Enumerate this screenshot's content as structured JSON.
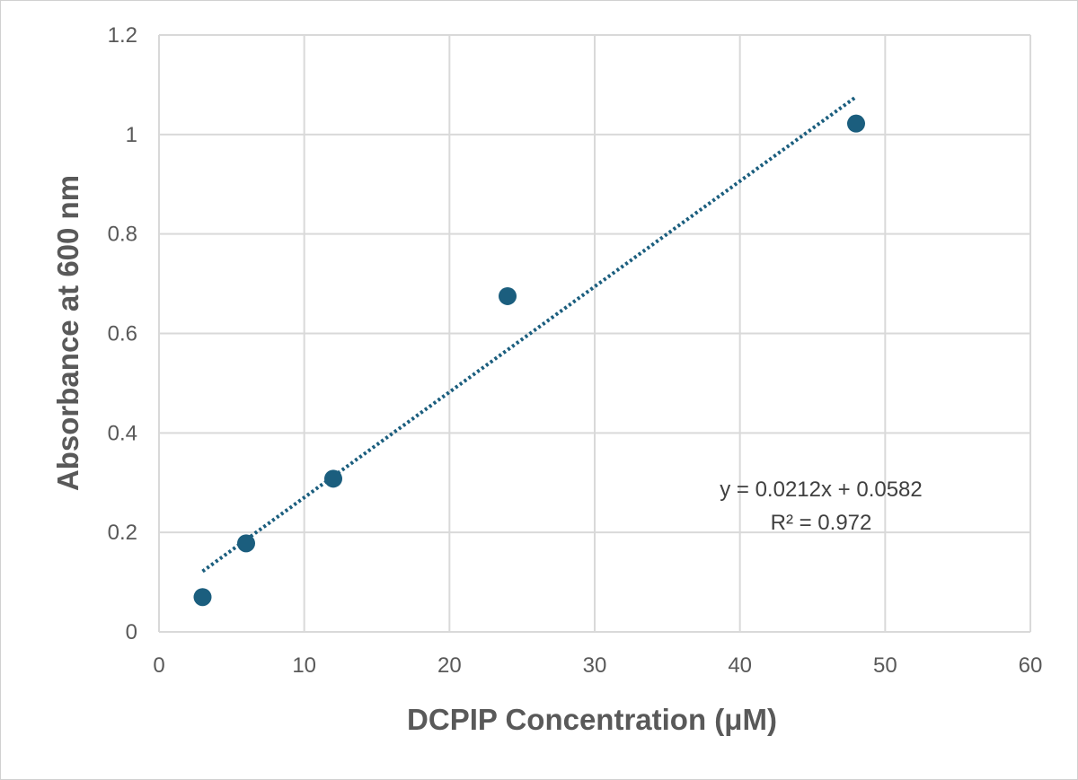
{
  "chart_data": {
    "type": "scatter",
    "title": "",
    "xlabel": "DCPIP Concentration (μM)",
    "ylabel": "Absorbance at 600 nm",
    "xlim": [
      0,
      60
    ],
    "ylim": [
      0,
      1.2
    ],
    "x_ticks": [
      0,
      10,
      20,
      30,
      40,
      50,
      60
    ],
    "y_ticks": [
      0,
      0.2,
      0.4,
      0.6,
      0.8,
      1,
      1.2
    ],
    "x_tick_labels": [
      "0",
      "10",
      "20",
      "30",
      "40",
      "50",
      "60"
    ],
    "y_tick_labels": [
      "0",
      "0.2",
      "0.4",
      "0.6",
      "0.8",
      "1",
      "1.2"
    ],
    "grid": true,
    "legend": "none",
    "series": [
      {
        "x": [
          3,
          6,
          12,
          24,
          48
        ],
        "y": [
          0.07,
          0.178,
          0.308,
          0.675,
          1.022
        ],
        "color": "#1b5e7e",
        "marker": "circle"
      }
    ],
    "trendline": {
      "type": "linear",
      "slope": 0.0212,
      "intercept": 0.0582,
      "x_range": [
        3,
        48
      ],
      "style": "dotted",
      "color": "#1b5e7e"
    },
    "annotations": {
      "equation": "y = 0.0212x + 0.0582",
      "r_squared": "R² = 0.972"
    }
  }
}
